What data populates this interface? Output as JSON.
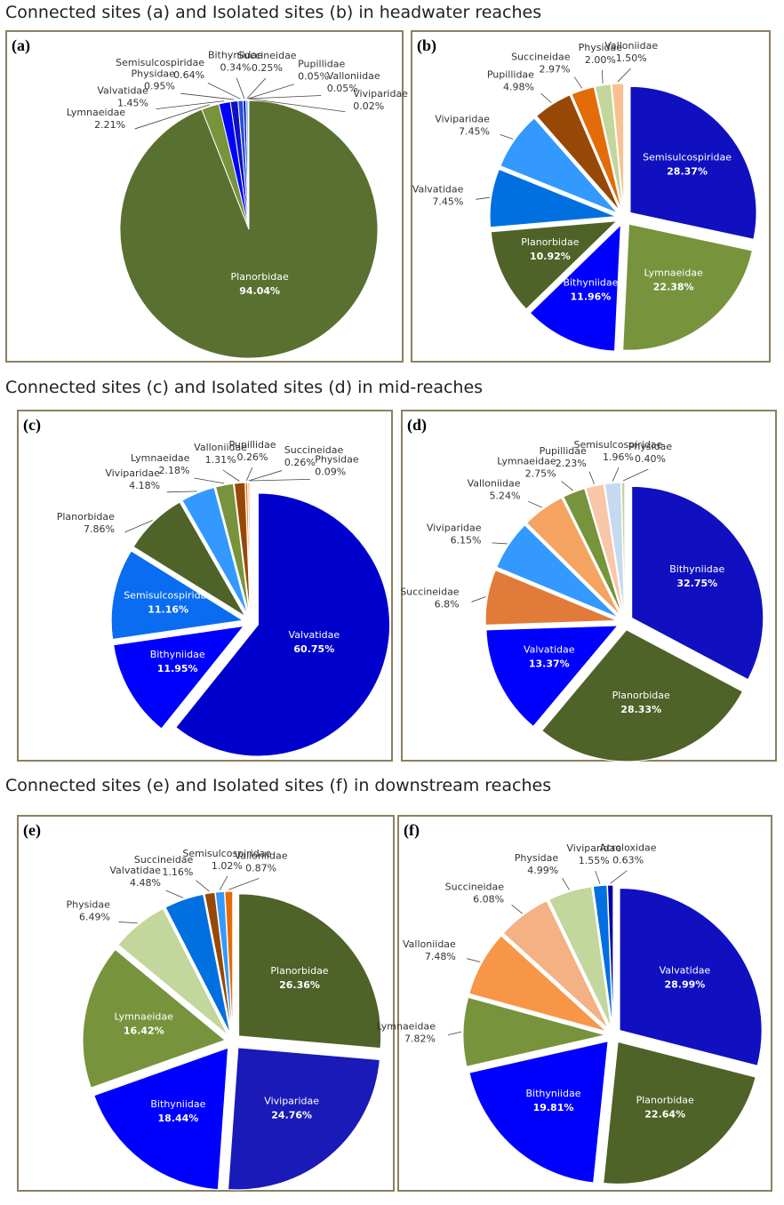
{
  "headings": [
    "Connected sites (a) and Isolated sites (b) in headwater reaches",
    "Connected sites (c) and Isolated sites (d) in mid-reaches",
    "Connected sites (e) and Isolated sites (f) in downstream reaches"
  ],
  "chart_data": [
    {
      "type": "pie",
      "panel_label": "(a)",
      "exploded": false,
      "categories": [
        "Planorbidae",
        "Lymnaeidae",
        "Valvatidae",
        "Physidae",
        "Semisulcospiridae",
        "Bithyniidae",
        "Succineidae",
        "Pupillidae",
        "Valloniidae",
        "Viviparidae"
      ],
      "values": [
        94.04,
        2.21,
        1.45,
        0.95,
        0.64,
        0.34,
        0.25,
        0.05,
        0.05,
        0.02
      ],
      "value_labels": [
        "94.04%",
        "2.21%",
        "1.45%",
        "0.95%",
        "0.64%",
        "0.34%",
        "0.25%",
        "0.05%",
        "0.05%",
        "0.02%"
      ],
      "colors": [
        "#5a7030",
        "#77933c",
        "#0000ff",
        "#1010c0",
        "#2050e0",
        "#0000aa",
        "#3399ff",
        "#974806",
        "#c3d69b",
        "#fac090"
      ]
    },
    {
      "type": "pie",
      "panel_label": "(b)",
      "exploded": true,
      "categories": [
        "Semisulcospiridae",
        "Lymnaeidae",
        "Bithyniidae",
        "Planorbidae",
        "Valvatidae",
        "Viviparidae",
        "Pupillidae",
        "Succineidae",
        "Physidae",
        "Valloniidae"
      ],
      "values": [
        28.37,
        22.38,
        11.96,
        10.92,
        7.45,
        7.45,
        4.98,
        2.97,
        2.0,
        1.5
      ],
      "value_labels": [
        "28.37%",
        "22.38%",
        "11.96%",
        "10.92%",
        "7.45%",
        "7.45%",
        "4.98%",
        "2.97%",
        "2.00%",
        "1.50%"
      ],
      "colors": [
        "#1010c0",
        "#77933c",
        "#0000ff",
        "#4f6228",
        "#0070e0",
        "#3399ff",
        "#974806",
        "#e36c09",
        "#c3d69b",
        "#fac090"
      ]
    },
    {
      "type": "pie",
      "panel_label": "(c)",
      "exploded": true,
      "categories": [
        "Valvatidae",
        "Bithyniidae",
        "Semisulcospiridae",
        "Planorbidae",
        "Viviparidae",
        "Lymnaeidae",
        "Valloniidae",
        "Pupillidae",
        "Succineidae",
        "Physidae"
      ],
      "values": [
        60.75,
        11.95,
        11.16,
        7.86,
        4.18,
        2.18,
        1.31,
        0.26,
        0.26,
        0.09
      ],
      "value_labels": [
        "60.75%",
        "11.95%",
        "11.16%",
        "7.86%",
        "4.18%",
        "2.18%",
        "1.31%",
        "0.26%",
        "0.26%",
        "0.09%"
      ],
      "colors": [
        "#0000cc",
        "#0000ff",
        "#0a6cf0",
        "#4f6228",
        "#3399ff",
        "#77933c",
        "#974806",
        "#e36c09",
        "#fac090",
        "#c3d69b"
      ]
    },
    {
      "type": "pie",
      "panel_label": "(d)",
      "exploded": true,
      "categories": [
        "Bithyniidae",
        "Planorbidae",
        "Valvatidae",
        "Succineidae",
        "Viviparidae",
        "Valloniidae",
        "Lymnaeidae",
        "Pupillidae",
        "Semisulcospiridae",
        "Physidae"
      ],
      "values": [
        32.75,
        28.33,
        13.37,
        6.8,
        6.15,
        5.24,
        2.75,
        2.23,
        1.96,
        0.4
      ],
      "value_labels": [
        "32.75%",
        "28.33%",
        "13.37%",
        "6.8%",
        "6.15%",
        "5.24%",
        "2.75%",
        "2.23%",
        "1.96%",
        "0.40%"
      ],
      "colors": [
        "#1010c0",
        "#4f6228",
        "#0000ff",
        "#e07b39",
        "#3399ff",
        "#f4a460",
        "#77933c",
        "#f9c6a8",
        "#c6d9f1",
        "#c3d69b"
      ]
    },
    {
      "type": "pie",
      "panel_label": "(e)",
      "exploded": true,
      "categories": [
        "Planorbidae",
        "Viviparidae",
        "Bithyniidae",
        "Lymnaeidae",
        "Physidae",
        "Valvatidae",
        "Succineidae",
        "Semisulcospiridae",
        "Valloniidae"
      ],
      "values": [
        26.36,
        24.76,
        18.44,
        16.42,
        6.49,
        4.48,
        1.16,
        1.02,
        0.87
      ],
      "value_labels": [
        "26.36%",
        "24.76%",
        "18.44%",
        "16.42%",
        "6.49%",
        "4.48%",
        "1.16%",
        "1.02%",
        "0.87%"
      ],
      "colors": [
        "#4f6228",
        "#1a1ab8",
        "#0000ff",
        "#77933c",
        "#c3d69b",
        "#0070e0",
        "#974806",
        "#3399ff",
        "#e36c09"
      ]
    },
    {
      "type": "pie",
      "panel_label": "(f)",
      "exploded": true,
      "categories": [
        "Valvatidae",
        "Planorbidae",
        "Bithyniidae",
        "Lymnaeidae",
        "Valloniidae",
        "Succineidae",
        "Physidae",
        "Viviparidae",
        "Acroloxidae"
      ],
      "values": [
        28.99,
        22.64,
        19.81,
        7.82,
        7.48,
        6.08,
        4.99,
        1.55,
        0.63
      ],
      "value_labels": [
        "28.99%",
        "22.64%",
        "19.81%",
        "7.82%",
        "7.48%",
        "6.08%",
        "4.99%",
        "1.55%",
        "0.63%"
      ],
      "colors": [
        "#1010c0",
        "#4f6228",
        "#0000ff",
        "#77933c",
        "#f79646",
        "#f4b183",
        "#c3d69b",
        "#0070e0",
        "#0000aa"
      ]
    }
  ]
}
